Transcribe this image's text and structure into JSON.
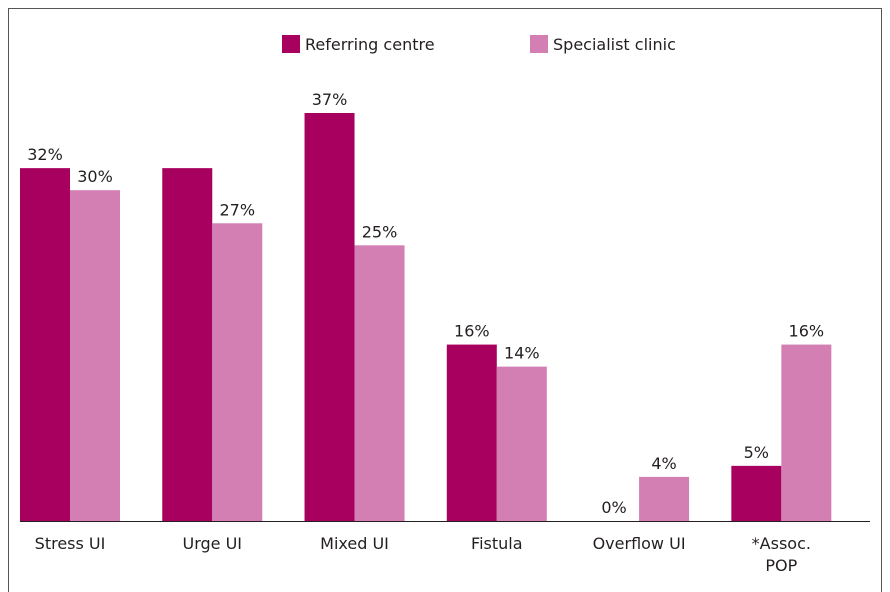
{
  "chart_data": {
    "type": "bar",
    "categories": [
      "Stress UI",
      "Urge UI",
      "Mixed UI",
      "Fistula",
      "Overflow UI",
      "*Assoc.\nPOP"
    ],
    "series": [
      {
        "name": "Referring centre",
        "color": "#a8005f",
        "values": [
          32,
          32,
          37,
          16,
          0,
          5
        ],
        "value_labels": [
          "32%",
          null,
          "37%",
          "16%",
          "0%",
          "5%"
        ]
      },
      {
        "name": "Specialist clinic",
        "color": "#d37fb3",
        "values": [
          30,
          27,
          25,
          14,
          4,
          16
        ],
        "value_labels": [
          "30%",
          "27%",
          "25%",
          "14%",
          "4%",
          "16%"
        ]
      }
    ],
    "legend": "top"
  }
}
